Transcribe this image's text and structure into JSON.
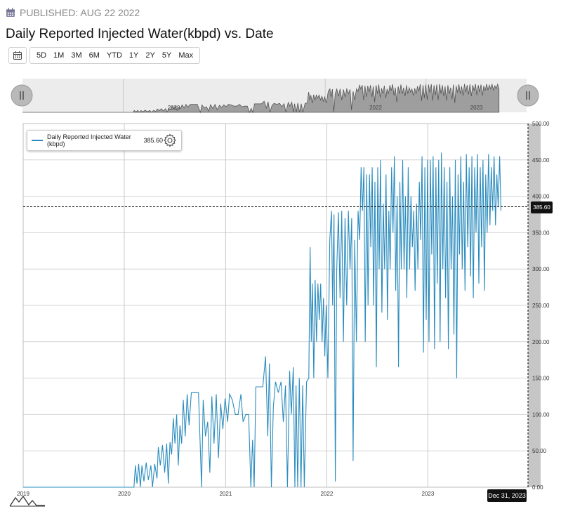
{
  "header": {
    "published": "PUBLISHED: AUG 22 2022",
    "title": "Daily Reported Injected Water(kbpd) vs. Date"
  },
  "toolbar": {
    "calendar_icon": "calendar-icon",
    "ranges": [
      "5D",
      "1M",
      "3M",
      "6M",
      "YTD",
      "1Y",
      "2Y",
      "5Y",
      "Max"
    ]
  },
  "legend": {
    "series_name": "Daily Reported Injected Water (kbpd)",
    "value": "385.60",
    "gear_icon": "gear-icon"
  },
  "crosshair": {
    "value_label": "385.60",
    "date_label": "Dec 31, 2023"
  },
  "navigator": {
    "year_labels": [
      "2020",
      "2022",
      "2023"
    ]
  },
  "colors": {
    "series": "#2b8cbe",
    "axis_band": "#c6c6c6",
    "navigator_fill": "#999999"
  },
  "chart_data": {
    "type": "line",
    "title": "Daily Reported Injected Water(kbpd) vs. Date",
    "xlabel": "",
    "ylabel": "",
    "x_ticks": [
      "2019",
      "2020",
      "2021",
      "2022",
      "2023"
    ],
    "y_ticks": [
      "0.00",
      "50.00",
      "100.00",
      "150.00",
      "200.00",
      "250.00",
      "300.00",
      "350.00",
      "400.00",
      "450.00",
      "500.00"
    ],
    "ylim": [
      0,
      500
    ],
    "xlim": [
      "2019-01-01",
      "2023-12-31"
    ],
    "grid": true,
    "legend_position": "top-left",
    "crosshair_y": 385.6,
    "series": [
      {
        "name": "Daily Reported Injected Water (kbpd)",
        "points": [
          [
            "2019-01-01",
            0
          ],
          [
            "2020-02-05",
            0
          ],
          [
            "2020-02-10",
            30
          ],
          [
            "2020-02-16",
            5
          ],
          [
            "2020-02-22",
            32
          ],
          [
            "2020-02-28",
            0
          ],
          [
            "2020-03-05",
            30
          ],
          [
            "2020-03-12",
            8
          ],
          [
            "2020-03-20",
            34
          ],
          [
            "2020-03-28",
            10
          ],
          [
            "2020-04-06",
            30
          ],
          [
            "2020-04-12",
            0
          ],
          [
            "2020-04-20",
            32
          ],
          [
            "2020-04-28",
            12
          ],
          [
            "2020-05-03",
            55
          ],
          [
            "2020-05-10",
            30
          ],
          [
            "2020-05-18",
            58
          ],
          [
            "2020-05-26",
            20
          ],
          [
            "2020-06-02",
            60
          ],
          [
            "2020-06-08",
            5
          ],
          [
            "2020-06-14",
            62
          ],
          [
            "2020-06-20",
            45
          ],
          [
            "2020-06-26",
            95
          ],
          [
            "2020-07-02",
            60
          ],
          [
            "2020-07-08",
            100
          ],
          [
            "2020-07-14",
            30
          ],
          [
            "2020-07-20",
            85
          ],
          [
            "2020-07-26",
            60
          ],
          [
            "2020-08-01",
            120
          ],
          [
            "2020-08-08",
            70
          ],
          [
            "2020-08-15",
            128
          ],
          [
            "2020-08-22",
            85
          ],
          [
            "2020-08-30",
            130
          ],
          [
            "2020-09-10",
            130
          ],
          [
            "2020-09-25",
            130
          ],
          [
            "2020-10-06",
            0
          ],
          [
            "2020-10-12",
            120
          ],
          [
            "2020-10-20",
            70
          ],
          [
            "2020-10-28",
            90
          ],
          [
            "2020-11-05",
            20
          ],
          [
            "2020-11-12",
            125
          ],
          [
            "2020-11-20",
            60
          ],
          [
            "2020-11-28",
            128
          ],
          [
            "2020-12-06",
            40
          ],
          [
            "2020-12-14",
            115
          ],
          [
            "2020-12-22",
            80
          ],
          [
            "2020-12-30",
            122
          ],
          [
            "2021-01-08",
            90
          ],
          [
            "2021-01-15",
            128
          ],
          [
            "2021-01-25",
            120
          ],
          [
            "2021-02-05",
            100
          ],
          [
            "2021-02-15",
            100
          ],
          [
            "2021-02-25",
            128
          ],
          [
            "2021-03-05",
            90
          ],
          [
            "2021-03-15",
            100
          ],
          [
            "2021-03-25",
            100
          ],
          [
            "2021-04-02",
            0
          ],
          [
            "2021-04-08",
            65
          ],
          [
            "2021-04-14",
            0
          ],
          [
            "2021-04-20",
            138
          ],
          [
            "2021-05-01",
            138
          ],
          [
            "2021-05-15",
            138
          ],
          [
            "2021-05-25",
            180
          ],
          [
            "2021-06-02",
            70
          ],
          [
            "2021-06-08",
            170
          ],
          [
            "2021-06-15",
            0
          ],
          [
            "2021-06-22",
            110
          ],
          [
            "2021-06-30",
            145
          ],
          [
            "2021-07-10",
            130
          ],
          [
            "2021-07-20",
            145
          ],
          [
            "2021-07-28",
            90
          ],
          [
            "2021-08-05",
            140
          ],
          [
            "2021-08-12",
            0
          ],
          [
            "2021-08-20",
            160
          ],
          [
            "2021-08-26",
            100
          ],
          [
            "2021-09-02",
            165
          ],
          [
            "2021-09-08",
            0
          ],
          [
            "2021-09-12",
            140
          ],
          [
            "2021-09-18",
            0
          ],
          [
            "2021-09-24",
            150
          ],
          [
            "2021-09-30",
            0
          ],
          [
            "2021-10-06",
            140
          ],
          [
            "2021-10-12",
            0
          ],
          [
            "2021-10-20",
            145
          ],
          [
            "2021-10-28",
            150
          ],
          [
            "2021-11-02",
            330
          ],
          [
            "2021-11-06",
            200
          ],
          [
            "2021-11-10",
            280
          ],
          [
            "2021-11-15",
            150
          ],
          [
            "2021-11-20",
            285
          ],
          [
            "2021-11-25",
            200
          ],
          [
            "2021-11-30",
            280
          ],
          [
            "2021-12-05",
            230
          ],
          [
            "2021-12-10",
            280
          ],
          [
            "2021-12-15",
            200
          ],
          [
            "2021-12-20",
            260
          ],
          [
            "2021-12-25",
            180
          ],
          [
            "2021-12-30",
            250
          ],
          [
            "2022-01-05",
            150
          ],
          [
            "2022-01-12",
            340
          ],
          [
            "2022-01-18",
            380
          ],
          [
            "2022-01-22",
            250
          ],
          [
            "2022-01-27",
            375
          ],
          [
            "2022-02-01",
            8
          ],
          [
            "2022-02-06",
            300
          ],
          [
            "2022-02-12",
            378
          ],
          [
            "2022-02-18",
            260
          ],
          [
            "2022-02-24",
            380
          ],
          [
            "2022-03-02",
            200
          ],
          [
            "2022-03-08",
            370
          ],
          [
            "2022-03-14",
            250
          ],
          [
            "2022-03-20",
            380
          ],
          [
            "2022-03-26",
            300
          ],
          [
            "2022-04-01",
            370
          ],
          [
            "2022-04-06",
            36
          ],
          [
            "2022-04-12",
            340
          ],
          [
            "2022-04-18",
            200
          ],
          [
            "2022-04-24",
            380
          ],
          [
            "2022-04-30",
            340
          ],
          [
            "2022-05-05",
            440
          ],
          [
            "2022-05-10",
            380
          ],
          [
            "2022-05-15",
            440
          ],
          [
            "2022-05-20",
            200
          ],
          [
            "2022-05-25",
            430
          ],
          [
            "2022-05-30",
            250
          ],
          [
            "2022-06-04",
            430
          ],
          [
            "2022-06-09",
            330
          ],
          [
            "2022-06-14",
            440
          ],
          [
            "2022-06-19",
            250
          ],
          [
            "2022-06-24",
            420
          ],
          [
            "2022-06-29",
            165
          ],
          [
            "2022-07-04",
            440
          ],
          [
            "2022-07-09",
            300
          ],
          [
            "2022-07-14",
            450
          ],
          [
            "2022-07-19",
            240
          ],
          [
            "2022-07-24",
            390
          ],
          [
            "2022-07-29",
            300
          ],
          [
            "2022-08-03",
            430
          ],
          [
            "2022-08-08",
            230
          ],
          [
            "2022-08-13",
            380
          ],
          [
            "2022-08-18",
            300
          ],
          [
            "2022-08-23",
            440
          ],
          [
            "2022-08-28",
            350
          ],
          [
            "2022-09-02",
            455
          ],
          [
            "2022-09-07",
            270
          ],
          [
            "2022-09-12",
            400
          ],
          [
            "2022-09-17",
            165
          ],
          [
            "2022-09-22",
            420
          ],
          [
            "2022-09-27",
            300
          ],
          [
            "2022-10-02",
            450
          ],
          [
            "2022-10-07",
            300
          ],
          [
            "2022-10-12",
            400
          ],
          [
            "2022-10-17",
            260
          ],
          [
            "2022-10-22",
            440
          ],
          [
            "2022-10-27",
            300
          ],
          [
            "2022-11-01",
            400
          ],
          [
            "2022-11-06",
            330
          ],
          [
            "2022-11-11",
            380
          ],
          [
            "2022-11-16",
            270
          ],
          [
            "2022-11-21",
            390
          ],
          [
            "2022-11-26",
            300
          ],
          [
            "2022-12-01",
            420
          ],
          [
            "2022-12-06",
            340
          ],
          [
            "2022-12-11",
            455
          ],
          [
            "2022-12-16",
            185
          ],
          [
            "2022-12-21",
            440
          ],
          [
            "2022-12-26",
            230
          ],
          [
            "2022-12-31",
            450
          ],
          [
            "2023-01-05",
            200
          ],
          [
            "2023-01-10",
            450
          ],
          [
            "2023-01-15",
            320
          ],
          [
            "2023-01-20",
            455
          ],
          [
            "2023-01-25",
            190
          ],
          [
            "2023-01-30",
            440
          ],
          [
            "2023-02-04",
            280
          ],
          [
            "2023-02-09",
            450
          ],
          [
            "2023-02-14",
            200
          ],
          [
            "2023-02-19",
            460
          ],
          [
            "2023-02-24",
            300
          ],
          [
            "2023-03-01",
            440
          ],
          [
            "2023-03-06",
            260
          ],
          [
            "2023-03-11",
            420
          ],
          [
            "2023-03-16",
            190
          ],
          [
            "2023-03-21",
            440
          ],
          [
            "2023-03-26",
            300
          ],
          [
            "2023-03-31",
            400
          ],
          [
            "2023-04-05",
            210
          ],
          [
            "2023-04-10",
            450
          ],
          [
            "2023-04-15",
            150
          ],
          [
            "2023-04-20",
            430
          ],
          [
            "2023-04-25",
            320
          ],
          [
            "2023-04-30",
            455
          ],
          [
            "2023-05-05",
            300
          ],
          [
            "2023-05-10",
            420
          ],
          [
            "2023-05-15",
            270
          ],
          [
            "2023-05-20",
            458
          ],
          [
            "2023-05-25",
            330
          ],
          [
            "2023-05-30",
            440
          ],
          [
            "2023-06-04",
            290
          ],
          [
            "2023-06-09",
            455
          ],
          [
            "2023-06-14",
            260
          ],
          [
            "2023-06-19",
            440
          ],
          [
            "2023-06-24",
            350
          ],
          [
            "2023-06-29",
            458
          ],
          [
            "2023-07-04",
            280
          ],
          [
            "2023-07-09",
            440
          ],
          [
            "2023-07-14",
            330
          ],
          [
            "2023-07-19",
            450
          ],
          [
            "2023-07-24",
            270
          ],
          [
            "2023-07-29",
            430
          ],
          [
            "2023-08-03",
            350
          ],
          [
            "2023-08-08",
            458
          ],
          [
            "2023-08-13",
            360
          ],
          [
            "2023-08-18",
            440
          ],
          [
            "2023-08-23",
            380
          ],
          [
            "2023-08-28",
            455
          ],
          [
            "2023-09-02",
            360
          ],
          [
            "2023-09-07",
            430
          ],
          [
            "2023-09-12",
            385
          ],
          [
            "2023-09-17",
            455
          ],
          [
            "2023-09-22",
            380
          ]
        ]
      }
    ]
  }
}
